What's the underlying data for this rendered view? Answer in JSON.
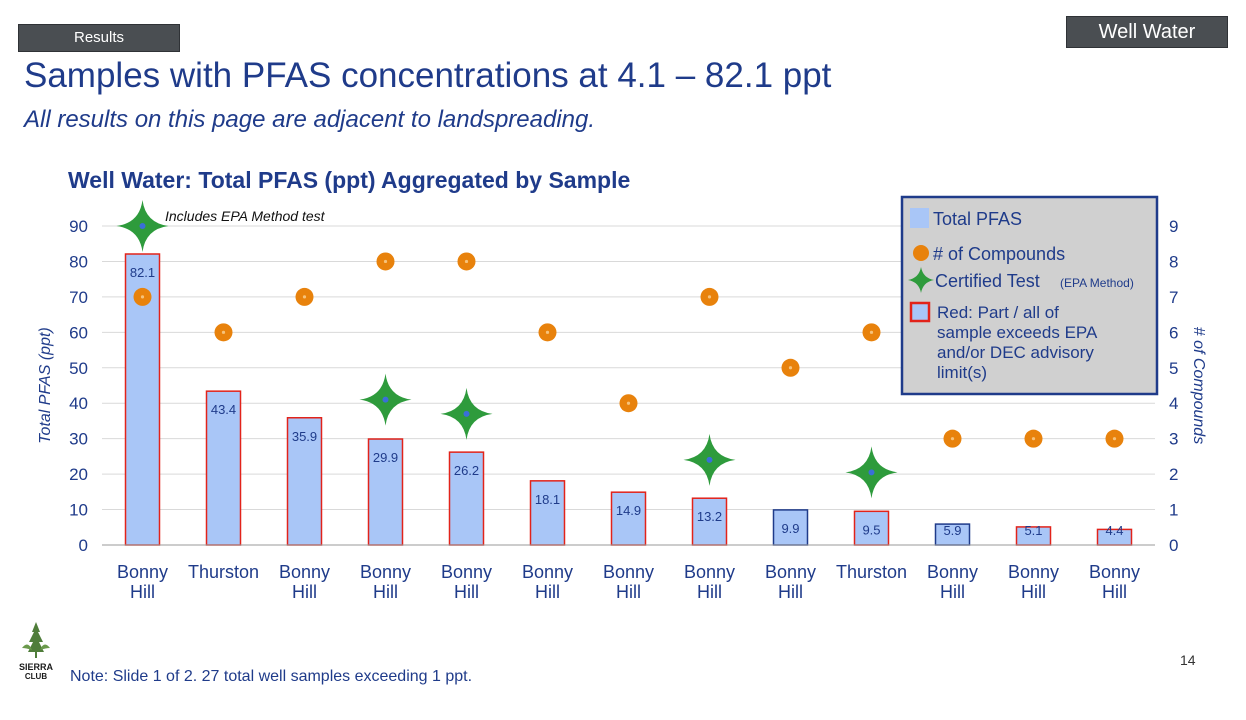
{
  "header": {
    "section_tag": "Results",
    "category_tag": "Well Water",
    "title": "Samples with PFAS concentrations at 4.1 – 82.1 ppt",
    "subtitle": "All results on this page are adjacent to landspreading."
  },
  "chart_data": {
    "type": "bar",
    "title": "Well Water: Total PFAS (ppt) Aggregated by Sample",
    "ylabel": "Total PFAS (ppt)",
    "y2label": "# of Compounds",
    "ylim": [
      0,
      90
    ],
    "y2lim": [
      0,
      9
    ],
    "yticks": [
      0,
      10,
      20,
      30,
      40,
      50,
      60,
      70,
      80,
      90
    ],
    "y2ticks": [
      0,
      1,
      2,
      3,
      4,
      5,
      6,
      7,
      8,
      9
    ],
    "grid": true,
    "legend_position": "top-right",
    "annotation": "Includes EPA Method test",
    "categories": [
      [
        "Bonny",
        "Hill"
      ],
      [
        "Thurston"
      ],
      [
        "Bonny",
        "Hill"
      ],
      [
        "Bonny",
        "Hill"
      ],
      [
        "Bonny",
        "Hill"
      ],
      [
        "Bonny",
        "Hill"
      ],
      [
        "Bonny",
        "Hill"
      ],
      [
        "Bonny",
        "Hill"
      ],
      [
        "Bonny",
        "Hill"
      ],
      [
        "Thurston"
      ],
      [
        "Bonny",
        "Hill"
      ],
      [
        "Bonny",
        "Hill"
      ],
      [
        "Bonny",
        "Hill"
      ]
    ],
    "series": [
      {
        "name": "Total PFAS",
        "axis": "left",
        "values": [
          82.1,
          43.4,
          35.9,
          29.9,
          26.2,
          18.1,
          14.9,
          13.2,
          9.9,
          9.5,
          5.9,
          5.1,
          4.4
        ],
        "labels": [
          "82.1",
          "43.4",
          "35.9",
          "29.9",
          "26.2",
          "18.1",
          "14.9",
          "13.2",
          "9.9",
          "9.5",
          "5.9",
          "5.1",
          "4.4"
        ],
        "exceeds_limit": [
          true,
          true,
          true,
          true,
          true,
          true,
          true,
          true,
          false,
          true,
          false,
          true,
          true
        ]
      },
      {
        "name": "# of Compounds",
        "axis": "right",
        "values": [
          7,
          6,
          7,
          8,
          8,
          6,
          4,
          7,
          5,
          6,
          3,
          3,
          3
        ]
      },
      {
        "name": "Certified Test",
        "axis": "right",
        "points": [
          {
            "index": 0,
            "value": 9
          },
          {
            "index": 3,
            "value": 4.1
          },
          {
            "index": 4,
            "value": 3.7
          },
          {
            "index": 7,
            "value": 2.4
          },
          {
            "index": 9,
            "value": 2.05
          }
        ]
      }
    ],
    "legend": [
      {
        "label": "Total PFAS"
      },
      {
        "label": "# of Compounds"
      },
      {
        "label": "Certified Test",
        "note": "(EPA Method)"
      },
      {
        "label_lines": [
          "Red: Part / all of",
          "sample exceeds EPA",
          "and/or DEC advisory",
          "limit(s)"
        ]
      }
    ],
    "colors": {
      "bar_fill": "#a9c6f7",
      "bar_edge_exceed": "#e2231a",
      "bar_edge_normal": "#1f3b8a",
      "compound_dot": "#e8820c",
      "star_fill": "#2e9b3c",
      "star_center": "#3a6fd8",
      "text_blue": "#1f3b8a",
      "grid": "#d9d9d9",
      "legend_bg": "#d0d0d0",
      "legend_border": "#1f3b8a"
    }
  },
  "footer": {
    "note": "Note: Slide 1 of 2.  27 total well samples exceeding 1 ppt.",
    "page_number": "14",
    "logo_text": [
      "SIERRA",
      "CLUB"
    ]
  }
}
